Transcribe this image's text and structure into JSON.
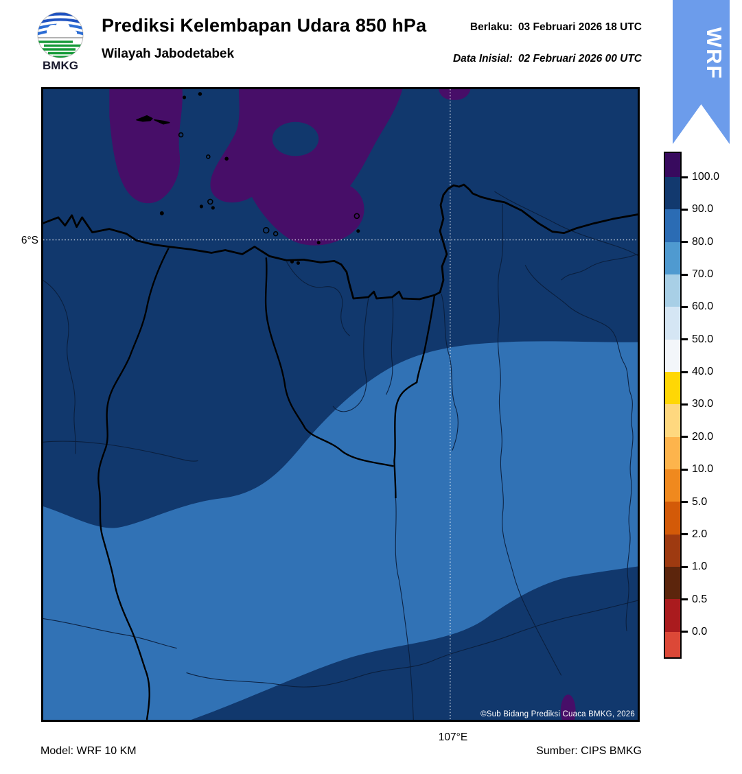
{
  "header": {
    "logo_text": "BMKG",
    "title": "Prediksi Kelembapan Udara 850 hPa",
    "subtitle": "Wilayah Jabodetabek",
    "valid_label": "Berlaku:",
    "valid_value": "03 Februari 2026 18 UTC",
    "init_label": "Data Inisial:",
    "init_value": "02 Februari 2026 00 UTC",
    "ribbon_text": "WRF",
    "ribbon_color": "#6c9ceb"
  },
  "map": {
    "lat_tick": "6°S",
    "lon_tick": "107°E",
    "copyright": "©Sub Bidang Prediksi Cuaca BMKG, 2026",
    "colors": {
      "rh_90_100": "#11386d",
      "rh_80_90": "#3172b5",
      "rh_over_100": "#470e68"
    }
  },
  "colorbar": {
    "unit": "%",
    "tick_labels": [
      "100.0",
      "90.0",
      "80.0",
      "70.0",
      "60.0",
      "50.0",
      "40.0",
      "30.0",
      "20.0",
      "10.0",
      "5.0",
      "2.0",
      "1.0",
      "0.5",
      "0.0"
    ],
    "segment_colors": [
      "#380a5e",
      "#12396e",
      "#2b6cb4",
      "#4f9ad0",
      "#a8cfe6",
      "#d5e6f4",
      "#f3f6fa",
      "#ffd705",
      "#fed87f",
      "#fdb44c",
      "#f0891e",
      "#d35a08",
      "#9e3a10",
      "#5c250c",
      "#aa1b1e",
      "#dc4837"
    ]
  },
  "footer": {
    "model": "Model: WRF 10 KM",
    "source": "Sumber: CIPS BMKG"
  }
}
